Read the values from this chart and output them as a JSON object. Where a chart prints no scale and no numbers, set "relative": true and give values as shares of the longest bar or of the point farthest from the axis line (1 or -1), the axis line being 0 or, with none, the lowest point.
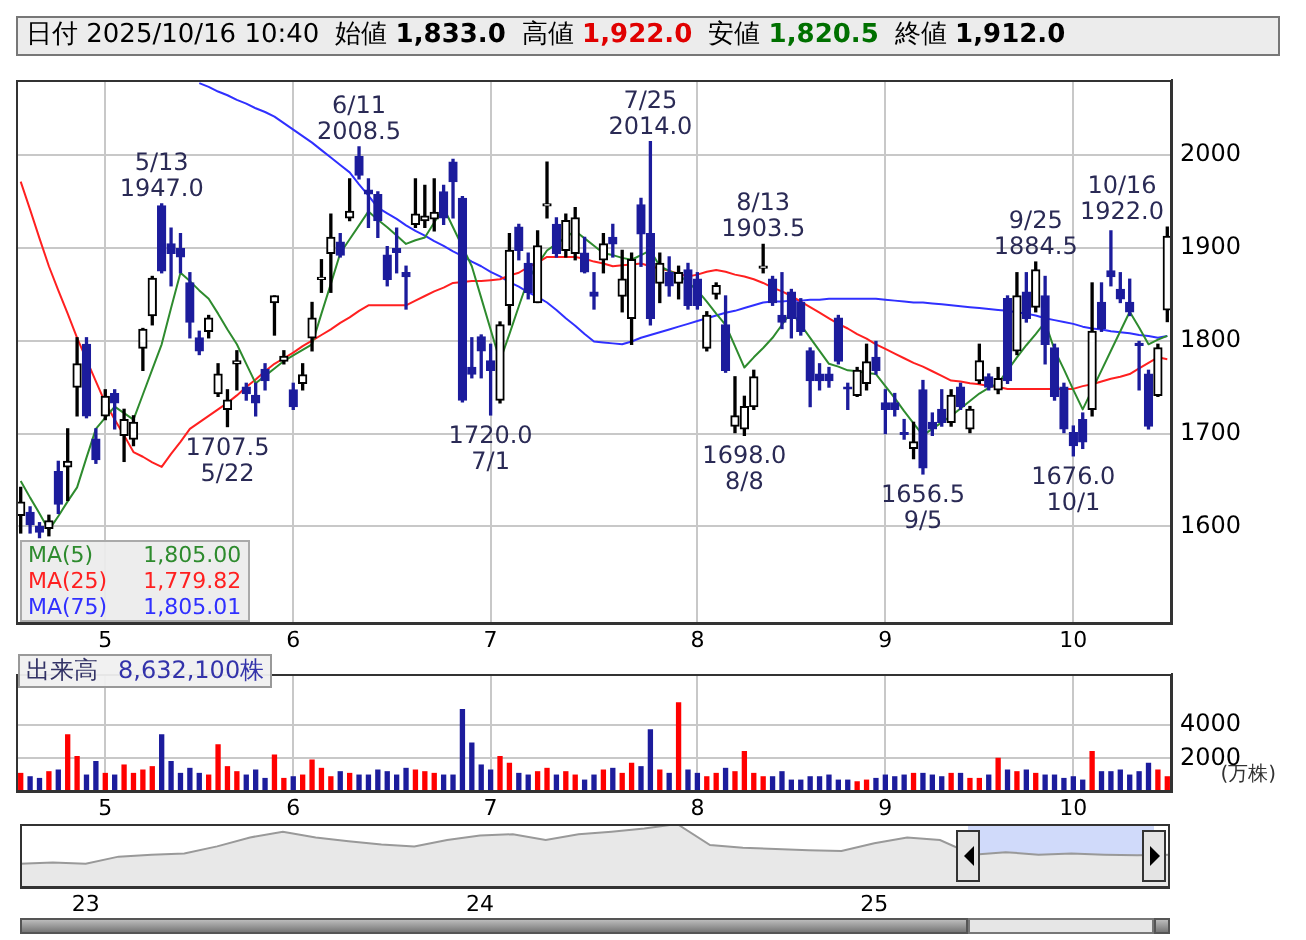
{
  "chart_data": [
    {
      "type": "candlestick",
      "title": "日付 2025/10/16 10:40",
      "categories": [
        null,
        null,
        null,
        null,
        null,
        null,
        null,
        null,
        null,
        "5",
        null,
        null,
        null,
        null,
        null,
        null,
        null,
        null,
        null,
        null,
        null,
        null,
        null,
        null,
        null,
        null,
        null,
        null,
        null,
        "6",
        null,
        null,
        null,
        null,
        null,
        null,
        null,
        null,
        null,
        null,
        null,
        null,
        null,
        null,
        null,
        null,
        null,
        null,
        null,
        null,
        "7",
        null,
        null,
        null,
        null,
        null,
        null,
        null,
        null,
        null,
        null,
        null,
        null,
        null,
        null,
        null,
        null,
        null,
        null,
        null,
        null,
        null,
        "8",
        null,
        null,
        null,
        null,
        null,
        null,
        null,
        null,
        null,
        null,
        null,
        null,
        null,
        null,
        null,
        null,
        null,
        null,
        null,
        "9",
        null,
        null,
        null,
        null,
        null,
        null,
        null,
        null,
        null,
        null,
        null,
        null,
        null,
        null,
        null,
        null,
        null,
        null,
        null,
        "10",
        null,
        null,
        null,
        null,
        null,
        null,
        null,
        null,
        null,
        null
      ],
      "ohlc": [
        [
          1612,
          1642,
          1593,
          1626
        ],
        [
          1615,
          1621,
          1593,
          1602
        ],
        [
          1600,
          1604,
          1588,
          1594
        ],
        [
          1598,
          1612,
          1590,
          1606
        ],
        [
          1659,
          1670,
          1614,
          1624
        ],
        [
          1664,
          1705,
          1628,
          1670
        ],
        [
          1750,
          1803,
          1719,
          1775
        ],
        [
          1796,
          1803,
          1717,
          1719
        ],
        [
          1694,
          1705,
          1668,
          1672
        ],
        [
          1719,
          1747,
          1715,
          1740
        ],
        [
          1743,
          1747,
          1705,
          1733
        ],
        [
          1698,
          1726,
          1670,
          1715
        ],
        [
          1694,
          1719,
          1687,
          1712
        ],
        [
          1792,
          1813,
          1768,
          1812
        ],
        [
          1827,
          1869,
          1817,
          1867
        ],
        [
          1945,
          1947,
          1873,
          1875
        ],
        [
          1904,
          1921,
          1859,
          1894
        ],
        [
          1899,
          1915,
          1873,
          1890
        ],
        [
          1862,
          1873,
          1803,
          1820
        ],
        [
          1803,
          1810,
          1785,
          1789
        ],
        [
          1810,
          1827,
          1803,
          1824
        ],
        [
          1743,
          1775,
          1740,
          1764
        ],
        [
          1726,
          1747,
          1707.5,
          1736
        ],
        [
          1775,
          1789,
          1747,
          1778
        ],
        [
          1750,
          1754,
          1736,
          1743
        ],
        [
          1741,
          1754,
          1719,
          1733
        ],
        [
          1769,
          1775,
          1747,
          1757
        ],
        [
          1841,
          1848,
          1806,
          1848
        ],
        [
          1778,
          1789,
          1775,
          1783
        ],
        [
          1747,
          1754,
          1726,
          1729
        ],
        [
          1754,
          1775,
          1747,
          1763
        ],
        [
          1803,
          1841,
          1789,
          1824
        ],
        [
          1866,
          1887,
          1852,
          1868
        ],
        [
          1894,
          1936,
          1852,
          1911
        ],
        [
          1906,
          1915,
          1890,
          1892
        ],
        [
          1932,
          1974,
          1929,
          1939
        ],
        [
          1998,
          2008.5,
          1974,
          1978
        ],
        [
          1962,
          1974,
          1922,
          1958
        ],
        [
          1957,
          1960,
          1911,
          1929
        ],
        [
          1892,
          1901,
          1859,
          1866
        ],
        [
          1899,
          1921,
          1873,
          1895
        ],
        [
          1873,
          1880,
          1834,
          1869
        ],
        [
          1925,
          1974,
          1922,
          1936
        ],
        [
          1929,
          1967,
          1922,
          1934
        ],
        [
          1931,
          1974,
          1918,
          1938
        ],
        [
          1960,
          1967,
          1925,
          1932
        ],
        [
          1992,
          1995,
          1932,
          1971
        ],
        [
          1953,
          1955,
          1734,
          1736
        ],
        [
          1771,
          1803,
          1760,
          1764
        ],
        [
          1804,
          1806,
          1760,
          1789
        ],
        [
          1778,
          1796,
          1720,
          1768
        ],
        [
          1736,
          1820,
          1733,
          1817
        ],
        [
          1838,
          1915,
          1817,
          1897
        ],
        [
          1922,
          1925,
          1887,
          1897
        ],
        [
          1883,
          1894,
          1845,
          1852
        ],
        [
          1841,
          1918,
          1841,
          1902
        ],
        [
          1945,
          1992,
          1932,
          1947
        ],
        [
          1925,
          1932,
          1890,
          1894
        ],
        [
          1897,
          1936,
          1890,
          1929
        ],
        [
          1894,
          1943,
          1887,
          1932
        ],
        [
          1894,
          1911,
          1873,
          1874
        ],
        [
          1852,
          1873,
          1834,
          1848
        ],
        [
          1887,
          1915,
          1873,
          1904
        ],
        [
          1911,
          1925,
          1890,
          1904
        ],
        [
          1848,
          1897,
          1831,
          1866
        ],
        [
          1824,
          1894,
          1796,
          1887
        ],
        [
          1946,
          1953,
          1880,
          1915
        ],
        [
          1915,
          2014,
          1817,
          1824
        ],
        [
          1862,
          1894,
          1841,
          1883
        ],
        [
          1873,
          1890,
          1848,
          1859
        ],
        [
          1862,
          1880,
          1845,
          1873
        ],
        [
          1876,
          1883,
          1834,
          1838
        ],
        [
          1866,
          1873,
          1834,
          1838
        ],
        [
          1792,
          1831,
          1789,
          1827
        ],
        [
          1850,
          1862,
          1845,
          1859
        ],
        [
          1817,
          1848,
          1766,
          1768
        ],
        [
          1708,
          1761,
          1701,
          1719
        ],
        [
          1705,
          1740,
          1698,
          1729
        ],
        [
          1729,
          1768,
          1726,
          1761
        ],
        [
          1878,
          1903.5,
          1873,
          1880
        ],
        [
          1866,
          1869,
          1838,
          1841
        ],
        [
          1827,
          1873,
          1813,
          1820
        ],
        [
          1852,
          1855,
          1803,
          1824
        ],
        [
          1841,
          1845,
          1806,
          1810
        ],
        [
          1789,
          1792,
          1729,
          1757
        ],
        [
          1764,
          1775,
          1747,
          1757
        ],
        [
          1764,
          1771,
          1750,
          1757
        ],
        [
          1824,
          1827,
          1775,
          1778
        ],
        [
          1750,
          1754,
          1726,
          1748
        ],
        [
          1741,
          1771,
          1740,
          1768
        ],
        [
          1754,
          1796,
          1747,
          1777
        ],
        [
          1782,
          1799,
          1764,
          1768
        ],
        [
          1733,
          1747,
          1700,
          1726
        ],
        [
          1733,
          1743,
          1719,
          1726
        ],
        [
          1701,
          1715,
          1694,
          1699
        ],
        [
          1684,
          1712,
          1673,
          1691
        ],
        [
          1747,
          1757,
          1656.5,
          1663
        ],
        [
          1712,
          1722,
          1698,
          1705
        ],
        [
          1726,
          1747,
          1708,
          1712
        ],
        [
          1712,
          1747,
          1708,
          1741
        ],
        [
          1750,
          1754,
          1726,
          1729
        ],
        [
          1705,
          1729,
          1701,
          1726
        ],
        [
          1757,
          1796,
          1754,
          1778
        ],
        [
          1761,
          1764,
          1747,
          1750
        ],
        [
          1747,
          1771,
          1743,
          1759
        ],
        [
          1845,
          1848,
          1754,
          1757
        ],
        [
          1789,
          1873,
          1785,
          1848
        ],
        [
          1852,
          1873,
          1820,
          1824
        ],
        [
          1836,
          1884.5,
          1831,
          1876
        ],
        [
          1848,
          1869,
          1775,
          1796
        ],
        [
          1792,
          1796,
          1736,
          1740
        ],
        [
          1750,
          1754,
          1701,
          1705
        ],
        [
          1701,
          1708,
          1676,
          1687
        ],
        [
          1715,
          1722,
          1684,
          1691
        ],
        [
          1726,
          1862,
          1719,
          1810
        ],
        [
          1841,
          1862,
          1810,
          1813
        ],
        [
          1875,
          1918,
          1859,
          1869
        ],
        [
          1855,
          1873,
          1841,
          1845
        ],
        [
          1841,
          1866,
          1827,
          1831
        ],
        [
          1797,
          1799,
          1747,
          1795
        ],
        [
          1764,
          1768,
          1705,
          1708
        ],
        [
          1741,
          1796,
          1740,
          1792
        ],
        [
          1833,
          1922,
          1820.5,
          1912
        ]
      ],
      "colors": [
        "#000000",
        "#1c1c9c",
        "#1c1c9c",
        "#000000",
        "#1c1c9c",
        "#000000",
        "#000000",
        "#1c1c9c",
        "#1c1c9c",
        "#000000",
        "#1c1c9c",
        "#000000",
        "#000000",
        "#000000",
        "#000000",
        "#1c1c9c",
        "#1c1c9c",
        "#1c1c9c",
        "#1c1c9c",
        "#1c1c9c",
        "#000000",
        "#000000",
        "#000000",
        "#000000",
        "#1c1c9c",
        "#1c1c9c",
        "#1c1c9c",
        "#000000",
        "#000000",
        "#1c1c9c",
        "#000000",
        "#000000",
        "#000000",
        "#000000",
        "#1c1c9c",
        "#000000",
        "#1c1c9c",
        "#1c1c9c",
        "#1c1c9c",
        "#1c1c9c",
        "#1c1c9c",
        "#1c1c9c",
        "#000000",
        "#000000",
        "#000000",
        "#1c1c9c",
        "#1c1c9c",
        "#1c1c9c",
        "#1c1c9c",
        "#1c1c9c",
        "#1c1c9c",
        "#000000",
        "#000000",
        "#1c1c9c",
        "#1c1c9c",
        "#000000",
        "#000000",
        "#1c1c9c",
        "#000000",
        "#000000",
        "#1c1c9c",
        "#1c1c9c",
        "#000000",
        "#1c1c9c",
        "#000000",
        "#000000",
        "#1c1c9c",
        "#1c1c9c",
        "#000000",
        "#1c1c9c",
        "#000000",
        "#1c1c9c",
        "#1c1c9c",
        "#000000",
        "#000000",
        "#1c1c9c",
        "#000000",
        "#000000",
        "#000000",
        "#000000",
        "#1c1c9c",
        "#1c1c9c",
        "#1c1c9c",
        "#1c1c9c",
        "#1c1c9c",
        "#1c1c9c",
        "#1c1c9c",
        "#1c1c9c",
        "#1c1c9c",
        "#000000",
        "#000000",
        "#1c1c9c",
        "#1c1c9c",
        "#1c1c9c",
        "#1c1c9c",
        "#000000",
        "#1c1c9c",
        "#1c1c9c",
        "#1c1c9c",
        "#000000",
        "#1c1c9c",
        "#000000",
        "#000000",
        "#1c1c9c",
        "#000000",
        "#1c1c9c",
        "#000000",
        "#1c1c9c",
        "#000000",
        "#1c1c9c",
        "#1c1c9c",
        "#1c1c9c",
        "#1c1c9c",
        "#1c1c9c",
        "#000000",
        "#1c1c9c",
        "#1c1c9c",
        "#1c1c9c",
        "#1c1c9c",
        "#1c1c9c",
        "#1c1c9c",
        "#000000",
        "#000000"
      ],
      "series": [
        {
          "type": "line",
          "name": "MA(5)",
          "color": "#2e8b2e",
          "values": [
            1649,
            1631,
            1614,
            1596,
            1611,
            1627,
            1642,
            1674,
            1705,
            1717,
            1729,
            1722,
            1715,
            1742,
            1769,
            1796,
            1835,
            1873,
            1864,
            1854,
            1845,
            1829,
            1812,
            1796,
            1775,
            1754,
            1762,
            1770,
            1778,
            1784,
            1790,
            1796,
            1829,
            1861,
            1894,
            1909,
            1924,
            1939,
            1930,
            1922,
            1913,
            1904,
            1908,
            1911,
            1927,
            1943,
            1922,
            null,
            1880,
            1846,
            1812,
            1778,
            1807,
            1837,
            1866,
            1882,
            1897,
            1904,
            1911,
            1918,
            1910,
            1902,
            1894,
            1892,
            1889,
            1887,
            1892,
            1897,
            1880,
            1875,
            1871,
            null,
            1854,
            1842,
            1829,
            1817,
            1794,
            1771,
            1782,
            1792,
            1803,
            1817,
            1831,
            1817,
            1803,
            1789,
            1775,
            1772,
            1768,
            1767,
            1765,
            1764,
            1751,
            1738,
            1724,
            1711,
            1698,
            1705,
            1712,
            1719,
            1727,
            1735,
            1743,
            1749,
            1754,
            1768,
            1782,
            1795,
            1807,
            1820,
            1790,
            1769,
            1747,
            1726,
            1747,
            1768,
            1789,
            1810,
            1831,
            1814,
            1796,
            1801,
            1805
          ]
        },
        {
          "type": "line",
          "name": "MA(25)",
          "color": "#ff2020",
          "values": [
            1971,
            1941,
            1910,
            1880,
            1854,
            1829,
            1803,
            null,
            1756,
            1733,
            1715,
            1698,
            1680,
            1675,
            1669,
            1664,
            1678,
            1691,
            1705,
            1712,
            1719,
            1726,
            1733,
            1741,
            1750,
            1758,
            1767,
            1775,
            1781,
            1787,
            1794,
            1800,
            1806,
            1812,
            1819,
            1825,
            1832,
            1838,
            1838,
            1838,
            1838,
            1838,
            1843,
            1848,
            1853,
            1857,
            1862,
            1863,
            1864,
            1864,
            1865,
            1866,
            1870,
            1873,
            1879,
            1884,
            1890,
            1890,
            1890,
            1890,
            1888,
            1885,
            1883,
            1880,
            1881,
            1882,
            1883,
            1880,
            null,
            1875,
            1872,
            1869,
            1871,
            1874,
            1876,
            1874,
            1871,
            1869,
            1866,
            1862,
            1857,
            1853,
            1848,
            1842,
            1836,
            1830,
            1824,
            1818,
            1813,
            1807,
            1802,
            1796,
            1791,
            1786,
            1781,
            1776,
            1772,
            1767,
            1762,
            1757,
            1756,
            1754,
            1753,
            1751,
            1750,
            1748,
            1748,
            1748,
            1748,
            1748,
            1748,
            1748,
            1748,
            1751,
            1753,
            1756,
            1759,
            1761,
            1764,
            1770,
            1776,
            1782,
            1780
          ]
        },
        {
          "type": "line",
          "name": "MA(75)",
          "color": "#3030ff",
          "values": [
            null,
            null,
            null,
            null,
            null,
            null,
            null,
            null,
            null,
            null,
            null,
            null,
            null,
            null,
            null,
            null,
            null,
            null,
            null,
            2077,
            2073,
            2068,
            2064,
            2059,
            2055,
            2050,
            2046,
            2041,
            2034,
            2027,
            2020,
            2013,
            2005,
            1997,
            1989,
            1981,
            1968,
            1956,
            1943,
            1937,
            1931,
            1924,
            1918,
            1913,
            1907,
            1902,
            1896,
            1891,
            1885,
            1880,
            1874,
            1869,
            1863,
            1858,
            1852,
            1847,
            1841,
            1833,
            1824,
            1816,
            1807,
            1799,
            1798,
            1797,
            1796,
            1799,
            1803,
            1806,
            1809,
            1812,
            1815,
            1818,
            1821,
            1824,
            1827,
            1830,
            1832,
            1835,
            1838,
            1841,
            1842,
            1842,
            1843,
            1843,
            1844,
            1844,
            1845,
            1845,
            1845,
            1845,
            1845,
            1845,
            1844,
            1843,
            1842,
            1841,
            1841,
            1840,
            1839,
            1838,
            1837,
            1836,
            1835,
            1834,
            1833,
            1832,
            null,
            1829,
            1827,
            1824,
            1822,
            1820,
            1818,
            1815,
            1813,
            1812,
            1810,
            1809,
            1808,
            1806,
            1805,
            1803,
            1805
          ]
        }
      ],
      "annotations": [
        "始値 1,833.0",
        "高値 1,922.0",
        "安値 1,820.5",
        "終値 1,912.0",
        "1,805.00",
        "1,779.82",
        "1,805.01",
        {
          "text": "5/13\n1947.0",
          "y": 1947
        },
        {
          "text": "1707.5\n5/22",
          "y": 1707.5
        },
        {
          "text": "6/11\n2008.5",
          "y": 2008.5
        },
        {
          "text": "1720.0\n7/1",
          "y": 1720
        },
        {
          "text": "7/25\n2014.0",
          "y": 2014
        },
        {
          "text": "1698.0\n8/8",
          "y": 1698
        },
        {
          "text": "8/13\n1903.5",
          "y": 1903.5
        },
        {
          "text": "1656.5\n9/5",
          "y": 1656.5
        },
        {
          "text": "9/25\n1884.5",
          "y": 1884.5
        },
        {
          "text": "1676.0\n10/1",
          "y": 1676
        },
        {
          "text": "10/16\n1922.0",
          "y": 1922
        }
      ],
      "ylim": [
        1495,
        2080
      ],
      "yticks": [
        1600,
        1700,
        1800,
        1900,
        2000
      ],
      "grid": true,
      "legend": "bottom left",
      "marker": "none"
    },
    {
      "type": "bar",
      "title": "出来高",
      "annotations": [
        "8,632,100株"
      ],
      "ylabel": "(万株)",
      "categories": [
        null,
        null,
        null,
        null,
        null,
        null,
        null,
        null,
        null,
        "5",
        null,
        null,
        null,
        null,
        null,
        null,
        null,
        null,
        null,
        null,
        null,
        null,
        null,
        null,
        null,
        null,
        null,
        null,
        null,
        "6",
        null,
        null,
        null,
        null,
        null,
        null,
        null,
        null,
        null,
        null,
        null,
        null,
        null,
        null,
        null,
        null,
        null,
        null,
        null,
        null,
        "7",
        null,
        null,
        null,
        null,
        null,
        null,
        null,
        null,
        null,
        null,
        null,
        null,
        null,
        null,
        null,
        null,
        null,
        null,
        null,
        null,
        null,
        "8",
        null,
        null,
        null,
        null,
        null,
        null,
        null,
        null,
        null,
        null,
        null,
        null,
        null,
        null,
        null,
        null,
        null,
        null,
        null,
        "9",
        null,
        null,
        null,
        null,
        null,
        null,
        null,
        null,
        null,
        null,
        null,
        null,
        null,
        null,
        null,
        null,
        null,
        null,
        null,
        "10",
        null,
        null,
        null,
        null,
        null,
        null,
        null,
        null,
        null,
        null
      ],
      "values": [
        1100,
        900,
        800,
        1200,
        1300,
        3400,
        2100,
        1000,
        1800,
        1100,
        1000,
        1600,
        1100,
        1300,
        1500,
        3400,
        1800,
        1100,
        1400,
        1100,
        1000,
        2800,
        1500,
        1200,
        1000,
        1300,
        800,
        2200,
        800,
        900,
        1000,
        1900,
        1400,
        900,
        1200,
        1100,
        1000,
        1000,
        1300,
        1200,
        1000,
        1400,
        1300,
        1200,
        1100,
        1000,
        1000,
        4900,
        2900,
        1600,
        1300,
        2100,
        1700,
        1100,
        1000,
        1200,
        1400,
        1000,
        1200,
        1000,
        700,
        1000,
        1300,
        1400,
        1100,
        1700,
        1500,
        3700,
        1300,
        1100,
        5300,
        1300,
        1100,
        900,
        1100,
        1400,
        1200,
        2400,
        1100,
        900,
        900,
        1200,
        700,
        700,
        900,
        900,
        1000,
        700,
        700,
        600,
        700,
        800,
        1000,
        900,
        1000,
        1100,
        1100,
        1000,
        900,
        1100,
        1100,
        800,
        800,
        1000,
        2000,
        1300,
        1200,
        1300,
        1100,
        1000,
        1000,
        800,
        900,
        700,
        2400,
        1200,
        1200,
        1300,
        1000,
        1200,
        1700,
        1300,
        900
      ],
      "colors": [
        "#ff0000",
        "#1c1c9c",
        "#1c1c9c",
        "#ff0000",
        "#1c1c9c",
        "#ff0000",
        "#ff0000",
        "#1c1c9c",
        "#1c1c9c",
        "#ff0000",
        "#1c1c9c",
        "#ff0000",
        "#ff0000",
        "#ff0000",
        "#ff0000",
        "#1c1c9c",
        "#1c1c9c",
        "#1c1c9c",
        "#1c1c9c",
        "#1c1c9c",
        "#ff0000",
        "#ff0000",
        "#ff0000",
        "#ff0000",
        "#1c1c9c",
        "#1c1c9c",
        "#1c1c9c",
        "#ff0000",
        "#ff0000",
        "#1c1c9c",
        "#ff0000",
        "#ff0000",
        "#ff0000",
        "#ff0000",
        "#1c1c9c",
        "#ff0000",
        "#1c1c9c",
        "#1c1c9c",
        "#1c1c9c",
        "#1c1c9c",
        "#1c1c9c",
        "#1c1c9c",
        "#ff0000",
        "#ff0000",
        "#ff0000",
        "#1c1c9c",
        "#1c1c9c",
        "#1c1c9c",
        "#1c1c9c",
        "#1c1c9c",
        "#1c1c9c",
        "#ff0000",
        "#ff0000",
        "#1c1c9c",
        "#1c1c9c",
        "#ff0000",
        "#ff0000",
        "#1c1c9c",
        "#ff0000",
        "#ff0000",
        "#1c1c9c",
        "#1c1c9c",
        "#ff0000",
        "#1c1c9c",
        "#ff0000",
        "#ff0000",
        "#1c1c9c",
        "#1c1c9c",
        "#ff0000",
        "#1c1c9c",
        "#ff0000",
        "#1c1c9c",
        "#1c1c9c",
        "#ff0000",
        "#ff0000",
        "#1c1c9c",
        "#ff0000",
        "#ff0000",
        "#ff0000",
        "#ff0000",
        "#1c1c9c",
        "#1c1c9c",
        "#1c1c9c",
        "#1c1c9c",
        "#1c1c9c",
        "#1c1c9c",
        "#1c1c9c",
        "#1c1c9c",
        "#1c1c9c",
        "#ff0000",
        "#ff0000",
        "#1c1c9c",
        "#1c1c9c",
        "#1c1c9c",
        "#1c1c9c",
        "#ff0000",
        "#1c1c9c",
        "#1c1c9c",
        "#1c1c9c",
        "#ff0000",
        "#1c1c9c",
        "#ff0000",
        "#ff0000",
        "#1c1c9c",
        "#ff0000",
        "#1c1c9c",
        "#ff0000",
        "#1c1c9c",
        "#ff0000",
        "#1c1c9c",
        "#1c1c9c",
        "#1c1c9c",
        "#1c1c9c",
        "#1c1c9c",
        "#ff0000",
        "#1c1c9c",
        "#1c1c9c",
        "#1c1c9c",
        "#1c1c9c",
        "#1c1c9c",
        "#1c1c9c",
        "#ff0000",
        "#ff0000"
      ],
      "ylim": [
        0,
        7000
      ],
      "yticks": [
        2000,
        4000
      ],
      "grid": true
    },
    {
      "type": "area",
      "relative": true,
      "color": "#999999",
      "categories": [
        null,
        null,
        "23",
        null,
        null,
        null,
        null,
        null,
        null,
        null,
        null,
        null,
        null,
        null,
        "24",
        null,
        null,
        null,
        null,
        null,
        null,
        null,
        null,
        null,
        null,
        null,
        "25",
        null,
        null,
        null,
        null,
        null,
        null,
        null,
        null,
        null
      ],
      "values": [
        0.38,
        0.4,
        0.38,
        0.49,
        0.52,
        0.54,
        0.65,
        0.79,
        0.88,
        0.79,
        0.73,
        0.68,
        0.65,
        0.75,
        0.82,
        0.84,
        0.75,
        0.84,
        0.88,
        0.93,
        1.0,
        0.67,
        0.63,
        0.61,
        0.59,
        0.58,
        0.7,
        0.79,
        0.75,
        0.52,
        0.56,
        0.52,
        0.54,
        0.52,
        0.51,
        0.52
      ]
    }
  ]
}
